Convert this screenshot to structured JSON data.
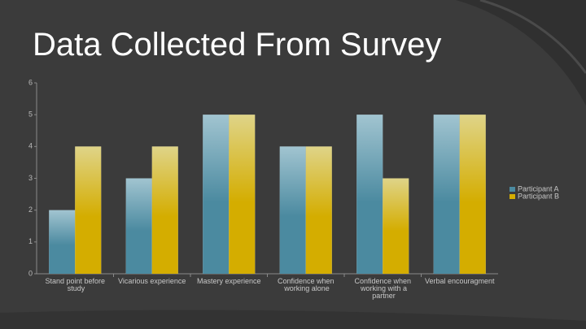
{
  "chart_data": {
    "type": "bar",
    "title": "Data Collected From Survey",
    "categories": [
      "Stand point before study",
      "Vicarious experience",
      "Mastery experience",
      "Confidence when working alone",
      "Confidence when working with a partner",
      "Verbal encouragment"
    ],
    "series": [
      {
        "name": "Participant A",
        "color": "#4b8aa0",
        "values": [
          2,
          3,
          5,
          4,
          5,
          5
        ]
      },
      {
        "name": "Participant B",
        "color": "#d4ad00",
        "values": [
          4,
          4,
          5,
          4,
          3,
          5
        ]
      }
    ],
    "ylim": [
      0,
      6
    ],
    "yticks": [
      0,
      1,
      2,
      3,
      4,
      5,
      6
    ],
    "legend": "right"
  }
}
